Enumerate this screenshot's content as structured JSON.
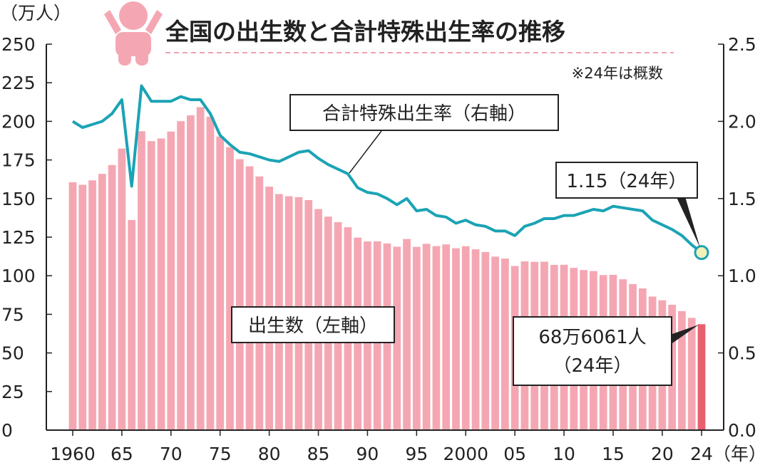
{
  "chart_data": {
    "type": "bar+line",
    "title": "全国の出生数と合計特殊出生率の推移",
    "note": "※24年は概数",
    "left_axis": {
      "unit_label": "（万人）",
      "ylim": [
        0,
        250
      ],
      "ticks": [
        "0",
        "25",
        "50",
        "75",
        "100",
        "125",
        "150",
        "175",
        "200",
        "225",
        "250"
      ]
    },
    "right_axis": {
      "ylim": [
        0,
        2.5
      ],
      "ticks": [
        "0.0",
        "0.5",
        "1.0",
        "1.5",
        "2.0",
        "2.5"
      ]
    },
    "x_axis": {
      "unit_label": "（年）",
      "tick_years": [
        1960,
        1965,
        1970,
        1975,
        1980,
        1985,
        1990,
        1995,
        2000,
        2005,
        2010,
        2015,
        2020,
        2024
      ],
      "tick_labels": [
        "1960",
        "65",
        "70",
        "75",
        "80",
        "85",
        "90",
        "95",
        "2000",
        "05",
        "10",
        "15",
        "20",
        "24"
      ]
    },
    "years": [
      1960,
      1961,
      1962,
      1963,
      1964,
      1965,
      1966,
      1967,
      1968,
      1969,
      1970,
      1971,
      1972,
      1973,
      1974,
      1975,
      1976,
      1977,
      1978,
      1979,
      1980,
      1981,
      1982,
      1983,
      1984,
      1985,
      1986,
      1987,
      1988,
      1989,
      1990,
      1991,
      1992,
      1993,
      1994,
      1995,
      1996,
      1997,
      1998,
      1999,
      2000,
      2001,
      2002,
      2003,
      2004,
      2005,
      2006,
      2007,
      2008,
      2009,
      2010,
      2011,
      2012,
      2013,
      2014,
      2015,
      2016,
      2017,
      2018,
      2019,
      2020,
      2021,
      2022,
      2023,
      2024
    ],
    "series": [
      {
        "name": "出生数（左軸）",
        "axis": "left",
        "kind": "bar",
        "color": "#f4a7b3",
        "highlight_color": "#e8606e",
        "values": [
          160.6,
          158.9,
          161.8,
          166.0,
          171.7,
          182.4,
          136.1,
          193.6,
          187.2,
          188.9,
          193.4,
          200.1,
          203.9,
          209.2,
          203.0,
          190.1,
          183.3,
          175.5,
          170.9,
          164.3,
          157.7,
          152.9,
          151.5,
          150.9,
          149.0,
          143.2,
          138.3,
          134.7,
          131.4,
          124.7,
          122.2,
          122.3,
          120.9,
          118.8,
          123.8,
          118.7,
          120.7,
          119.2,
          120.3,
          117.8,
          119.1,
          117.1,
          115.4,
          112.4,
          111.1,
          106.3,
          109.3,
          109.0,
          109.1,
          107.0,
          107.1,
          105.1,
          103.7,
          103.0,
          100.4,
          100.6,
          97.7,
          94.6,
          91.8,
          86.5,
          84.1,
          81.2,
          77.1,
          72.7,
          68.6
        ]
      },
      {
        "name": "合計特殊出生率（右軸）",
        "axis": "right",
        "kind": "line",
        "color": "#1ba3b5",
        "values": [
          2.0,
          1.96,
          1.98,
          2.0,
          2.05,
          2.14,
          1.58,
          2.23,
          2.13,
          2.13,
          2.13,
          2.16,
          2.14,
          2.14,
          2.05,
          1.91,
          1.85,
          1.8,
          1.79,
          1.77,
          1.75,
          1.74,
          1.77,
          1.8,
          1.81,
          1.76,
          1.72,
          1.69,
          1.66,
          1.57,
          1.54,
          1.53,
          1.5,
          1.46,
          1.5,
          1.42,
          1.43,
          1.39,
          1.38,
          1.34,
          1.36,
          1.33,
          1.32,
          1.29,
          1.29,
          1.26,
          1.32,
          1.34,
          1.37,
          1.37,
          1.39,
          1.39,
          1.41,
          1.43,
          1.42,
          1.45,
          1.44,
          1.43,
          1.42,
          1.36,
          1.33,
          1.3,
          1.26,
          1.2,
          1.15
        ]
      }
    ],
    "annotations": {
      "rate_line_label": "合計特殊出生率（右軸）",
      "births_label": "出生数（左軸）",
      "last_rate_label": "1.15（24年）",
      "last_births_line1": "68万6061人",
      "last_births_line2": "（24年）"
    }
  },
  "colors": {
    "bar": "#f4a7b3",
    "bar_highlight": "#e8606e",
    "line": "#1ba3b5",
    "end_marker_fill": "#f3f0b8",
    "title_rule": "#f0a0b0",
    "icon": "#f4a7b3"
  },
  "icons": {
    "baby": "baby-icon"
  }
}
